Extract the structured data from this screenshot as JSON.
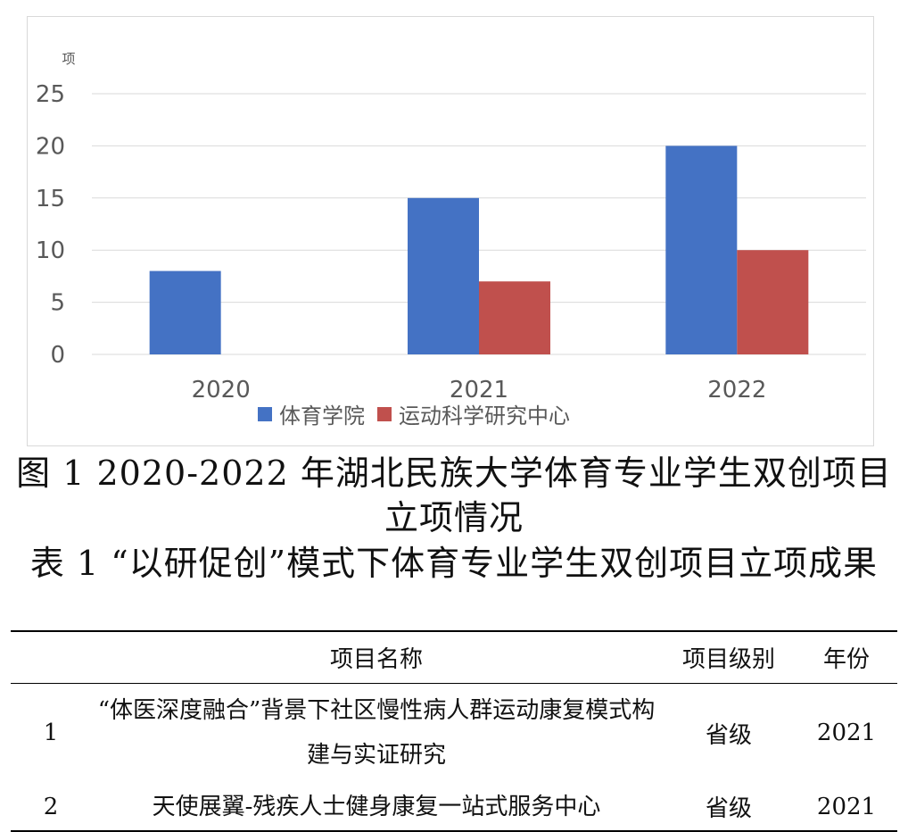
{
  "chart_data": {
    "type": "bar",
    "unit_label": "项",
    "categories": [
      "2020",
      "2021",
      "2022"
    ],
    "series": [
      {
        "name": "体育学院",
        "values": [
          8,
          15,
          20
        ],
        "color": "#4472C4"
      },
      {
        "name": "运动科学研究中心",
        "values": [
          0,
          7,
          10
        ],
        "color": "#C0504D"
      }
    ],
    "ylim": [
      0,
      25
    ],
    "yticks": [
      "0",
      "5",
      "10",
      "15",
      "20",
      "25"
    ],
    "grid": true,
    "legend_position": "bottom"
  },
  "figure_caption": "图 1 2020-2022 年湖北民族大学体育专业学生双创项目立项情况",
  "table_caption": "表 1 “以研促创”模式下体育专业学生双创项目立项成果",
  "table": {
    "headers": [
      "",
      "项目名称",
      "项目级别",
      "年份"
    ],
    "rows": [
      {
        "index": "1",
        "name": "“体医深度融合”背景下社区慢性病人群运动康复模式构建与实证研究",
        "level": "省级",
        "year": "2021"
      },
      {
        "index": "2",
        "name": "天使展翼-残疾人士健身康复一站式服务中心",
        "level": "省级",
        "year": "2021"
      }
    ]
  }
}
